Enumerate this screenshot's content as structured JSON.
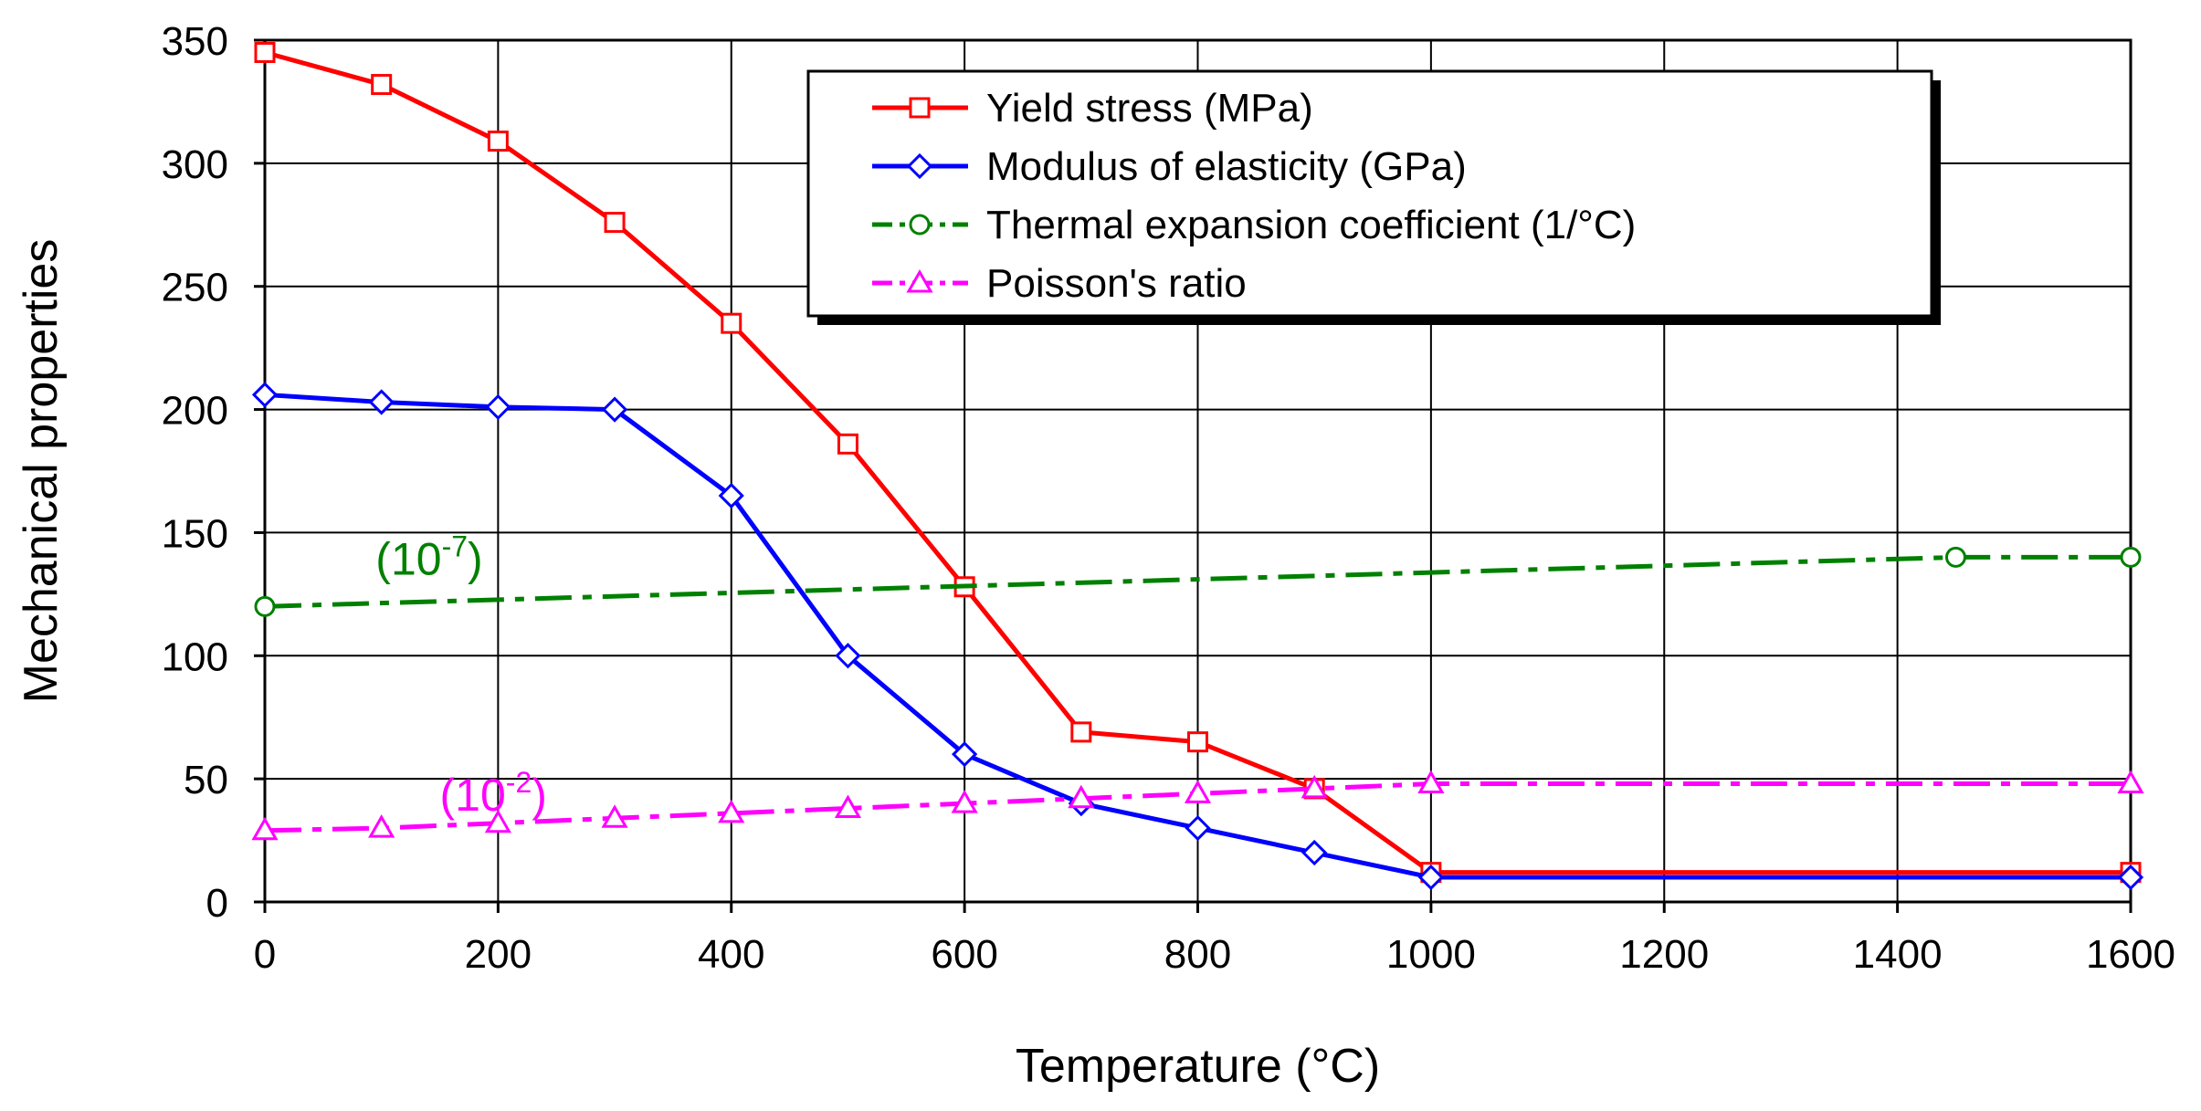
{
  "chart_data": {
    "type": "line",
    "xlabel": "Temperature (°C)",
    "ylabel": "Mechanical properties",
    "xlim": [
      0,
      1600
    ],
    "ylim": [
      0,
      350
    ],
    "xticks": [
      0,
      200,
      400,
      600,
      800,
      1000,
      1200,
      1400,
      1600
    ],
    "yticks": [
      0,
      50,
      100,
      150,
      200,
      250,
      300,
      350
    ],
    "x_tick_labels": [
      "0",
      "200",
      "400",
      "600",
      "800",
      "1000",
      "1200",
      "1400",
      "1600"
    ],
    "y_tick_labels": [
      "0",
      "50",
      "100",
      "150",
      "200",
      "250",
      "300",
      "350"
    ],
    "grid": true,
    "legend_position": "top-right",
    "series": [
      {
        "name": "Yield stress (MPa)",
        "color": "#ff0000",
        "marker": "square",
        "line_style": "solid",
        "x": [
          0,
          100,
          200,
          300,
          400,
          500,
          600,
          700,
          800,
          900,
          1000,
          1600
        ],
        "y": [
          345,
          332,
          309,
          276,
          235,
          186,
          128,
          69,
          65,
          46,
          12,
          12
        ]
      },
      {
        "name": "Modulus of elasticity (GPa)",
        "color": "#0000ff",
        "marker": "diamond",
        "line_style": "solid",
        "x": [
          0,
          100,
          200,
          300,
          400,
          500,
          600,
          700,
          800,
          900,
          1000,
          1600
        ],
        "y": [
          206,
          203,
          201,
          200,
          165,
          100,
          60,
          40,
          30,
          20,
          10,
          10
        ]
      },
      {
        "name": "Thermal expansion coefficient (1/°C)",
        "color": "#008000",
        "marker": "circle",
        "line_style": "dashdot",
        "x": [
          0,
          1450,
          1600
        ],
        "y": [
          120,
          140,
          140
        ]
      },
      {
        "name": "Poisson's ratio",
        "color": "#ff00ff",
        "marker": "triangle",
        "line_style": "dashdot",
        "x": [
          0,
          100,
          200,
          300,
          400,
          500,
          600,
          700,
          800,
          900,
          1000,
          1600
        ],
        "y": [
          29,
          30,
          32,
          34,
          36,
          38,
          40,
          42,
          44,
          46,
          48,
          48
        ]
      }
    ],
    "annotations": [
      {
        "base": "(10",
        "sup": "-7",
        "close": ")",
        "x": 95,
        "y": 133,
        "color": "#008000"
      },
      {
        "base": "(10",
        "sup": "-2",
        "close": ")",
        "x": 150,
        "y": 37,
        "color": "#ff00ff"
      }
    ]
  }
}
